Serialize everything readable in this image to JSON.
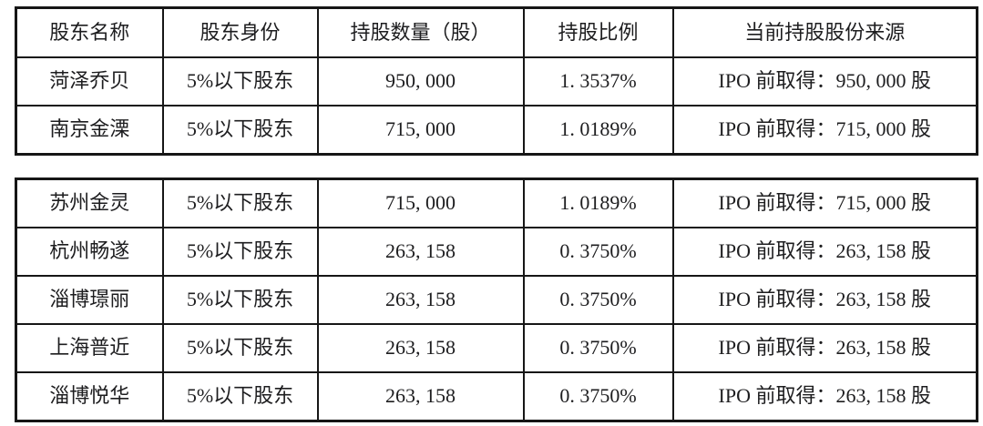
{
  "table1": {
    "headers": {
      "name": "股东名称",
      "identity": "股东身份",
      "amount": "持股数量（股）",
      "ratio": "持股比例",
      "source": "当前持股股份来源"
    },
    "rows": [
      [
        "菏泽乔贝",
        "5%以下股东",
        "950, 000",
        "1. 3537%",
        "IPO 前取得：950, 000 股"
      ],
      [
        "南京金溧",
        "5%以下股东",
        "715, 000",
        "1. 0189%",
        "IPO 前取得：715, 000 股"
      ]
    ]
  },
  "table2": {
    "rows": [
      [
        "苏州金灵",
        "5%以下股东",
        "715, 000",
        "1. 0189%",
        "IPO 前取得：715, 000 股"
      ],
      [
        "杭州畅遂",
        "5%以下股东",
        "263, 158",
        "0. 3750%",
        "IPO 前取得：263, 158 股"
      ],
      [
        "淄博璟丽",
        "5%以下股东",
        "263, 158",
        "0. 3750%",
        "IPO 前取得：263, 158 股"
      ],
      [
        "上海普近",
        "5%以下股东",
        "263, 158",
        "0. 3750%",
        "IPO 前取得：263, 158 股"
      ],
      [
        "淄博悦华",
        "5%以下股东",
        "263, 158",
        "0. 3750%",
        "IPO 前取得：263, 158 股"
      ]
    ]
  },
  "colors": {
    "text": "#1d1d1f",
    "border": "#161616",
    "background": "#ffffff"
  }
}
